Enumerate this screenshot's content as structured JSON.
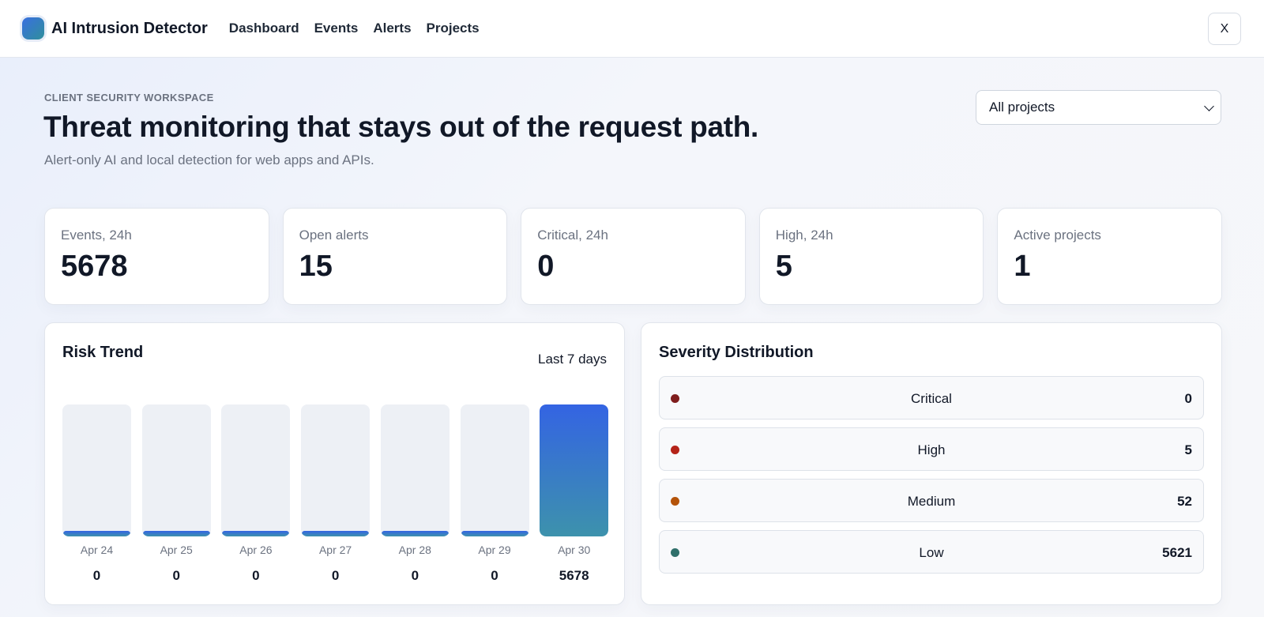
{
  "app": {
    "name": "AI Intrusion Detector",
    "nav": [
      "Dashboard",
      "Events",
      "Alerts",
      "Projects"
    ],
    "close_label": "X"
  },
  "header": {
    "eyebrow": "CLIENT SECURITY WORKSPACE",
    "title": "Threat monitoring that stays out of the request path.",
    "subtitle": "Alert-only AI and local detection for web apps and APIs.",
    "project_filter": "All projects"
  },
  "stats": [
    {
      "label": "Events, 24h",
      "value": "5678"
    },
    {
      "label": "Open alerts",
      "value": "15"
    },
    {
      "label": "Critical, 24h",
      "value": "0"
    },
    {
      "label": "High, 24h",
      "value": "5"
    },
    {
      "label": "Active projects",
      "value": "1"
    }
  ],
  "risk_trend": {
    "title": "Risk Trend",
    "range": "Last 7 days"
  },
  "chart_data": {
    "type": "bar",
    "categories": [
      "Apr 24",
      "Apr 25",
      "Apr 26",
      "Apr 27",
      "Apr 28",
      "Apr 29",
      "Apr 30"
    ],
    "values": [
      0,
      0,
      0,
      0,
      0,
      0,
      5678
    ]
  },
  "severity": {
    "title": "Severity Distribution",
    "items": [
      {
        "label": "Critical",
        "count": "0",
        "color": "#7f1d1d"
      },
      {
        "label": "High",
        "count": "5",
        "color": "#b42318"
      },
      {
        "label": "Medium",
        "count": "52",
        "color": "#b45309"
      },
      {
        "label": "Low",
        "count": "5621",
        "color": "#2f6f6a"
      }
    ]
  },
  "colors": {
    "accent": "#3464e3",
    "accent_end": "#3d92ac"
  }
}
